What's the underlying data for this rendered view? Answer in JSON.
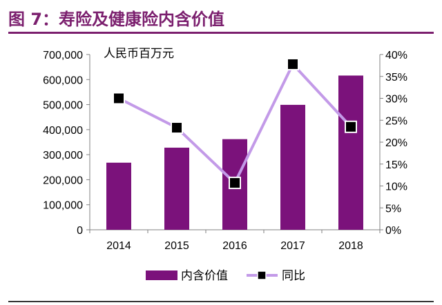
{
  "header": {
    "title": "图 7：寿险及健康险内含价值"
  },
  "chart_data": {
    "type": "bar",
    "categories": [
      "2014",
      "2015",
      "2016",
      "2017",
      "2018"
    ],
    "unit_label": "人民币百万元",
    "series": [
      {
        "name": "内含价值",
        "kind": "bar",
        "axis": "left",
        "color": "#7b127b",
        "values": [
          268000,
          328000,
          362000,
          499000,
          616000
        ]
      },
      {
        "name": "同比",
        "kind": "line",
        "axis": "right",
        "color": "#c39ae8",
        "marker_color": "#000000",
        "values": [
          0.3,
          0.233,
          0.107,
          0.378,
          0.235
        ]
      }
    ],
    "y_left": {
      "ylim": [
        0,
        700000
      ],
      "ticks": [
        0,
        100000,
        200000,
        300000,
        400000,
        500000,
        600000,
        700000
      ],
      "tick_labels": [
        "0",
        "100,000",
        "200,000",
        "300,000",
        "400,000",
        "500,000",
        "600,000",
        "700,000"
      ]
    },
    "y_right": {
      "ylim": [
        0,
        0.4
      ],
      "ticks": [
        0,
        0.05,
        0.1,
        0.15,
        0.2,
        0.25,
        0.3,
        0.35,
        0.4
      ],
      "tick_labels": [
        "0%",
        "5%",
        "10%",
        "15%",
        "20%",
        "25%",
        "30%",
        "35%",
        "40%"
      ]
    },
    "grid": false,
    "legend": {
      "position": "bottom",
      "entries": [
        "内含价值",
        "同比"
      ]
    }
  }
}
